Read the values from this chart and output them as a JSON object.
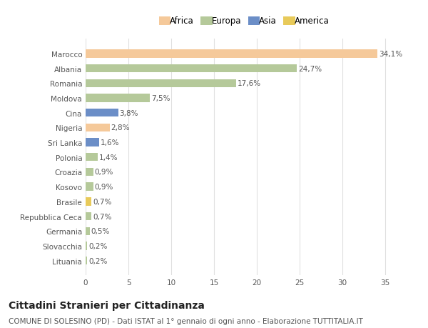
{
  "categories": [
    "Marocco",
    "Albania",
    "Romania",
    "Moldova",
    "Cina",
    "Nigeria",
    "Sri Lanka",
    "Polonia",
    "Croazia",
    "Kosovo",
    "Brasile",
    "Repubblica Ceca",
    "Germania",
    "Slovacchia",
    "Lituania"
  ],
  "values": [
    34.1,
    24.7,
    17.6,
    7.5,
    3.8,
    2.8,
    1.6,
    1.4,
    0.9,
    0.9,
    0.7,
    0.7,
    0.5,
    0.2,
    0.2
  ],
  "labels": [
    "34,1%",
    "24,7%",
    "17,6%",
    "7,5%",
    "3,8%",
    "2,8%",
    "1,6%",
    "1,4%",
    "0,9%",
    "0,9%",
    "0,7%",
    "0,7%",
    "0,5%",
    "0,2%",
    "0,2%"
  ],
  "colors": [
    "#f5c99a",
    "#b5c99a",
    "#b5c99a",
    "#b5c99a",
    "#6b8ec7",
    "#f5c99a",
    "#6b8ec7",
    "#b5c99a",
    "#b5c99a",
    "#b5c99a",
    "#e8ca5a",
    "#b5c99a",
    "#b5c99a",
    "#b5c99a",
    "#b5c99a"
  ],
  "legend_labels": [
    "Africa",
    "Europa",
    "Asia",
    "America"
  ],
  "legend_colors": [
    "#f5c99a",
    "#b5c99a",
    "#6b8ec7",
    "#e8ca5a"
  ],
  "xlim": [
    0,
    37
  ],
  "xticks": [
    0,
    5,
    10,
    15,
    20,
    25,
    30,
    35
  ],
  "title": "Cittadini Stranieri per Cittadinanza",
  "subtitle": "COMUNE DI SOLESINO (PD) - Dati ISTAT al 1° gennaio di ogni anno - Elaborazione TUTTITALIA.IT",
  "bg_color": "#ffffff",
  "grid_color": "#e0e0e0",
  "text_color": "#555555",
  "title_fontsize": 10,
  "subtitle_fontsize": 7.5,
  "label_fontsize": 7.5,
  "tick_fontsize": 7.5,
  "legend_fontsize": 8.5
}
